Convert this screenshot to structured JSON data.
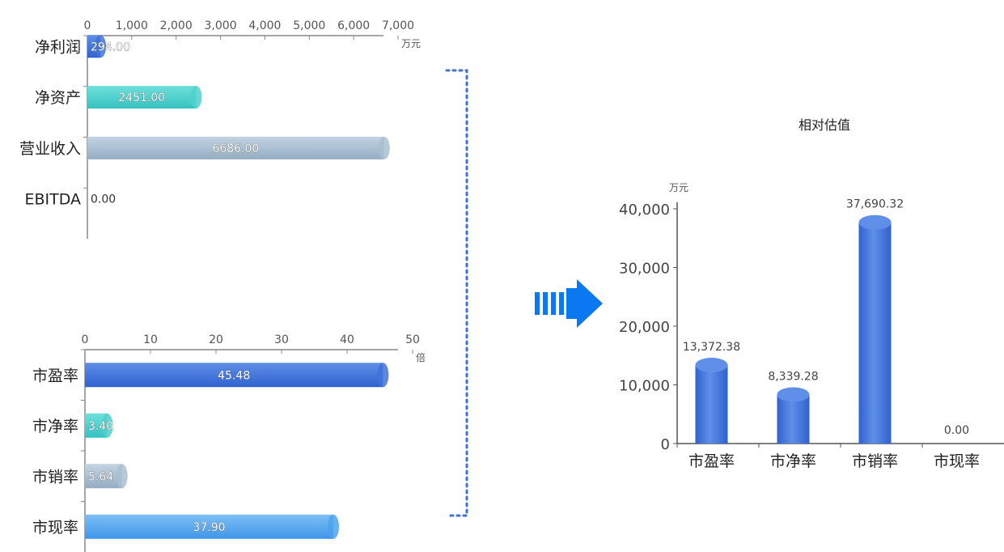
{
  "chart_data": [
    {
      "type": "bar",
      "orientation": "horizontal",
      "categories": [
        "净利润",
        "净资产",
        "营业收入",
        "EBITDA"
      ],
      "values": [
        294.0,
        2451.0,
        6686.0,
        0.0
      ],
      "value_labels": [
        "294.00",
        "2451.00",
        "6686.00",
        "0.00"
      ],
      "x_unit": "万元",
      "xlim": [
        0,
        7000
      ],
      "x_ticks": [
        "0",
        "1,000",
        "2,000",
        "3,000",
        "4,000",
        "5,000",
        "6,000",
        "7,000"
      ],
      "colors": [
        "#3f73d8",
        "#4fd1cc",
        "#a9bfd0",
        "#7aa8e8"
      ]
    },
    {
      "type": "bar",
      "orientation": "horizontal",
      "categories": [
        "市盈率",
        "市净率",
        "市销率",
        "市现率"
      ],
      "values": [
        45.48,
        3.4,
        5.64,
        37.9
      ],
      "value_labels": [
        "45.48",
        "3.40",
        "5.64",
        "37.90"
      ],
      "x_unit": "倍",
      "xlim": [
        0,
        50
      ],
      "x_ticks": [
        "0",
        "10",
        "20",
        "30",
        "40",
        "50"
      ],
      "colors": [
        "#3f73d8",
        "#4fd1cc",
        "#a9bfd0",
        "#4aa3f0"
      ]
    },
    {
      "type": "bar",
      "orientation": "vertical",
      "title": "相对估值",
      "y_unit": "万元",
      "categories": [
        "市盈率",
        "市净率",
        "市销率",
        "市现率"
      ],
      "values": [
        13372.38,
        8339.28,
        37690.32,
        0.0
      ],
      "value_labels": [
        "13,372.38",
        "8,339.28",
        "37,690.32",
        "0.00"
      ],
      "ylim": [
        0,
        40000
      ],
      "y_ticks": [
        "0",
        "10,000",
        "20,000",
        "30,000",
        "40,000"
      ],
      "color": "#3f73d8"
    }
  ],
  "connector": {
    "bracket_color": "#3f73d8",
    "arrow_color": "#0a78f0"
  }
}
